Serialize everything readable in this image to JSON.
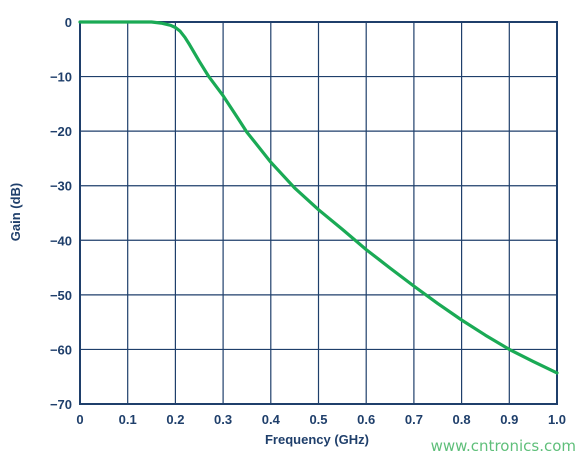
{
  "chart_data": {
    "type": "line",
    "xlabel": "Frequency (GHz)",
    "ylabel": "Gain (dB)",
    "xlim": [
      0,
      1.0
    ],
    "ylim": [
      -70,
      0
    ],
    "x_ticks": [
      "0",
      "0.1",
      "0.2",
      "0.3",
      "0.4",
      "0.5",
      "0.6",
      "0.7",
      "0.8",
      "0.9",
      "1.0"
    ],
    "y_ticks": [
      "0",
      "−10",
      "−20",
      "−30",
      "−40",
      "−50",
      "−60",
      "−70"
    ],
    "grid": true,
    "series": [
      {
        "color": "#1aaa55",
        "x": [
          0,
          0.05,
          0.1,
          0.15,
          0.17,
          0.19,
          0.2,
          0.21,
          0.22,
          0.23,
          0.25,
          0.27,
          0.3,
          0.33,
          0.35,
          0.4,
          0.45,
          0.5,
          0.55,
          0.6,
          0.65,
          0.7,
          0.75,
          0.8,
          0.85,
          0.9,
          0.95,
          1.0
        ],
        "y": [
          0,
          0,
          0,
          0,
          -0.2,
          -0.6,
          -1.0,
          -1.7,
          -2.8,
          -4.2,
          -7.2,
          -10.0,
          -13.5,
          -17.5,
          -20.2,
          -25.7,
          -30.4,
          -34.4,
          -38.0,
          -41.7,
          -45.1,
          -48.4,
          -51.6,
          -54.6,
          -57.4,
          -60.0,
          -62.2,
          -64.3
        ]
      }
    ]
  },
  "watermark": "www.cntronics.com"
}
